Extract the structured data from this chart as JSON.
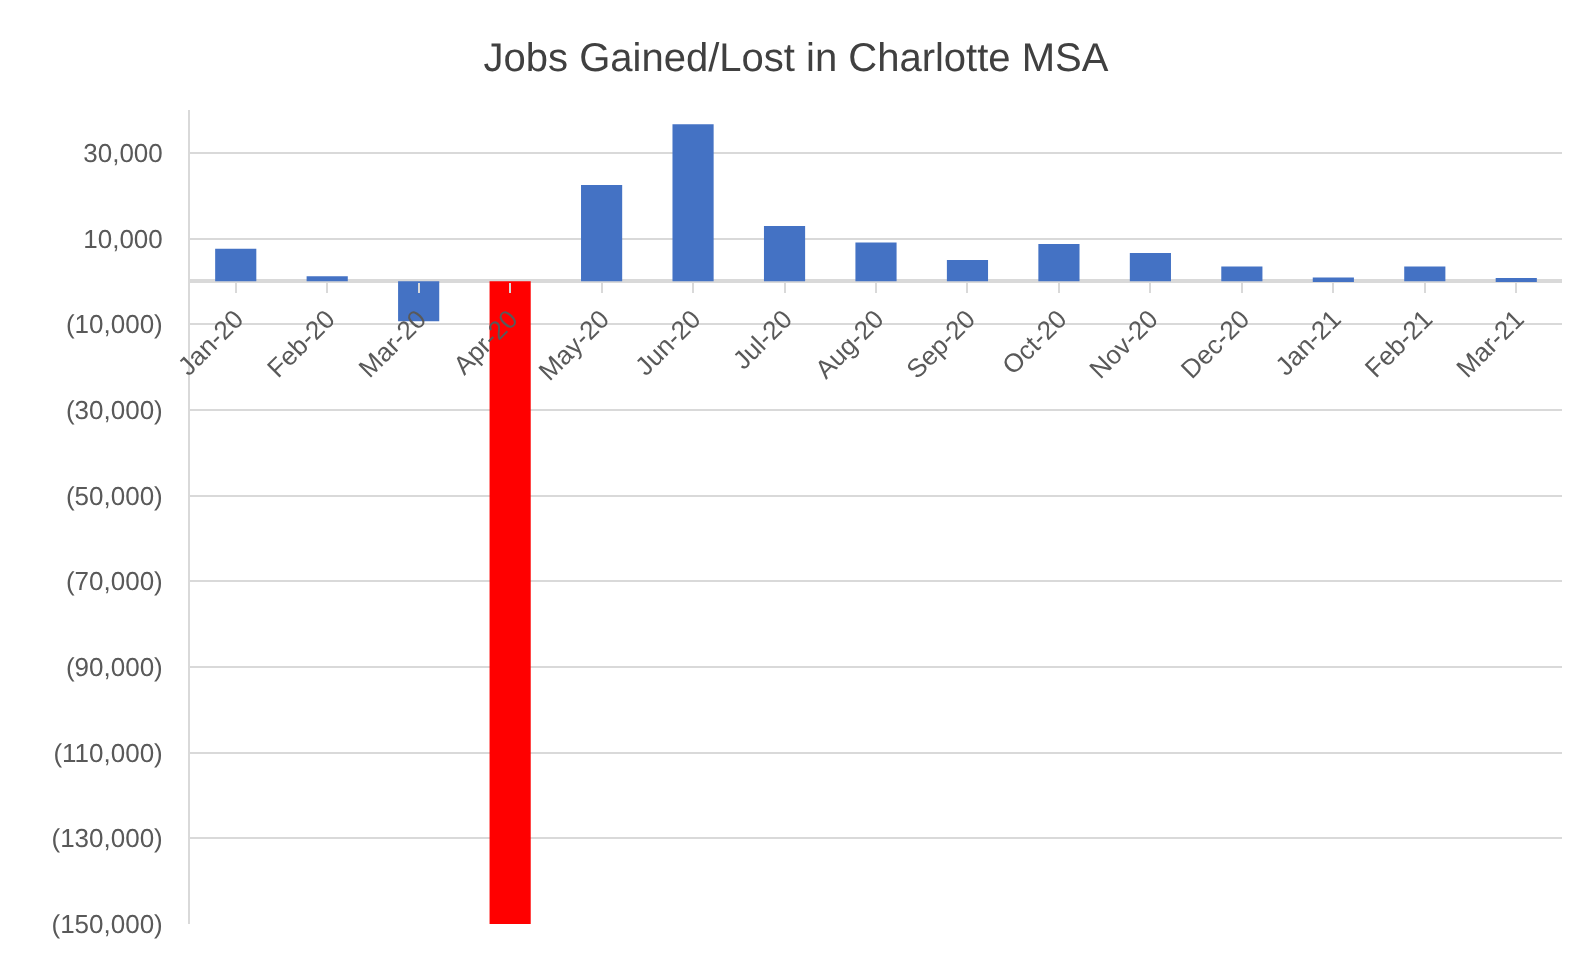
{
  "chart_data": {
    "type": "bar",
    "title": "Jobs Gained/Lost in Charlotte MSA",
    "categories": [
      "Jan-20",
      "Feb-20",
      "Mar-20",
      "Apr-20",
      "May-20",
      "Jun-20",
      "Jul-20",
      "Aug-20",
      "Sep-20",
      "Oct-20",
      "Nov-20",
      "Dec-20",
      "Jan-21",
      "Feb-21",
      "Mar-21"
    ],
    "values": [
      7600,
      1200,
      -9300,
      -150000,
      22500,
      36700,
      12900,
      9100,
      5000,
      8700,
      6600,
      3500,
      900,
      3500,
      500
    ],
    "colors": [
      "#4472c4",
      "#4472c4",
      "#4472c4",
      "#ff0000",
      "#4472c4",
      "#4472c4",
      "#4472c4",
      "#4472c4",
      "#4472c4",
      "#4472c4",
      "#4472c4",
      "#4472c4",
      "#4472c4",
      "#4472c4",
      "#4472c4"
    ],
    "ylim": [
      -150000,
      40000
    ],
    "yticks": [
      {
        "value": 30000,
        "label": "30,000"
      },
      {
        "value": 10000,
        "label": "10,000"
      },
      {
        "value": -10000,
        "label": "(10,000)"
      },
      {
        "value": -30000,
        "label": "(30,000)"
      },
      {
        "value": -50000,
        "label": "(50,000)"
      },
      {
        "value": -70000,
        "label": "(70,000)"
      },
      {
        "value": -90000,
        "label": "(90,000)"
      },
      {
        "value": -110000,
        "label": "(110,000)"
      },
      {
        "value": -130000,
        "label": "(130,000)"
      },
      {
        "value": -150000,
        "label": "(150,000)"
      }
    ],
    "grid": "y"
  }
}
